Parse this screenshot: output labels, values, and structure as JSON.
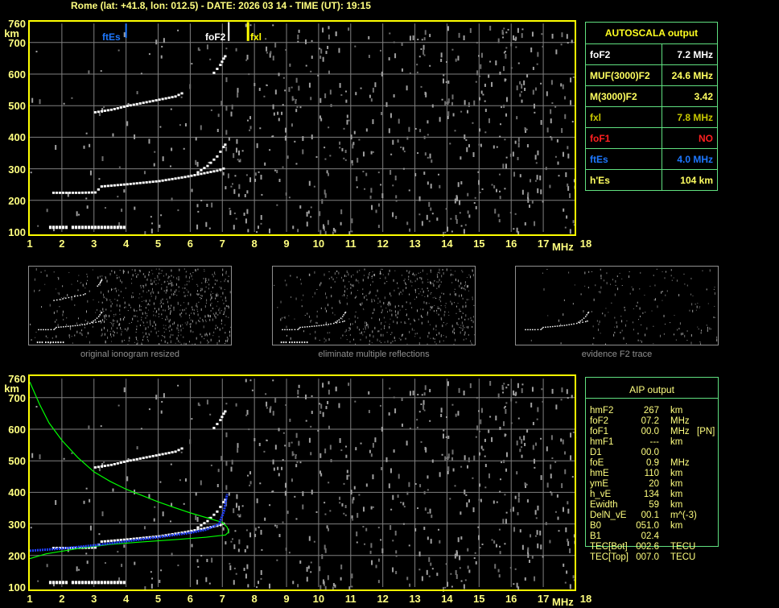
{
  "header": {
    "title": "Rome (lat: +41.8, lon: 012.5) - DATE: 2026 03 14 - TIME (UT): 19:15"
  },
  "colors": {
    "frame": "#ffff00",
    "grid": "#808080",
    "table_border": "#60e080",
    "ftEs": "#1e78ff",
    "foF2": "#ffffff",
    "fxl": "#ffff00",
    "profile": "#00ff00",
    "fit": "#2040ff"
  },
  "axes": {
    "y_unit": "km",
    "x_unit": "MHz",
    "y_ticks": [
      "760",
      "700",
      "600",
      "500",
      "400",
      "300",
      "200",
      "100"
    ],
    "x_ticks": [
      "1",
      "2",
      "3",
      "4",
      "5",
      "6",
      "7",
      "8",
      "9",
      "10",
      "11",
      "12",
      "13",
      "14",
      "15",
      "16",
      "17",
      "18"
    ]
  },
  "markers": {
    "ftEs": {
      "label": "ftEs",
      "freq": 4.0
    },
    "foF2": {
      "label": "foF2",
      "freq": 7.2
    },
    "fxl": {
      "label": "fxl",
      "freq": 7.8
    }
  },
  "autoscala": {
    "title": "AUTOSCALA output",
    "rows": [
      {
        "label": "foF2",
        "value": "7.2 MHz",
        "color": "#ffffff"
      },
      {
        "label": "MUF(3000)F2",
        "value": "24.6 MHz",
        "color": "#ffff60"
      },
      {
        "label": "M(3000)F2",
        "value": "3.42",
        "color": "#ffff60"
      },
      {
        "label": "fxl",
        "value": "7.8 MHz",
        "color": "#c8c800"
      },
      {
        "label": "foF1",
        "value": "NO",
        "color": "#ff2020"
      },
      {
        "label": "ftEs",
        "value": "4.0 MHz",
        "color": "#1e78ff"
      },
      {
        "label": "h'Es",
        "value": "104     km",
        "color": "#ffff60"
      }
    ]
  },
  "thumbnails": [
    {
      "caption": "original ionogram resized"
    },
    {
      "caption": "eliminate multiple reflections"
    },
    {
      "caption": "evidence F2 trace"
    }
  ],
  "aip": {
    "title": "AIP output",
    "rows": [
      {
        "label": "hmF2",
        "value": "267",
        "unit": "km",
        "extra": ""
      },
      {
        "label": "foF2",
        "value": "07.2",
        "unit": "MHz",
        "extra": ""
      },
      {
        "label": "foF1",
        "value": "00.0",
        "unit": "MHz",
        "extra": "[PN]"
      },
      {
        "label": "hmF1",
        "value": "---",
        "unit": "km",
        "extra": ""
      },
      {
        "label": "D1",
        "value": "00.0",
        "unit": "",
        "extra": ""
      },
      {
        "label": "foE",
        "value": "0.9",
        "unit": "MHz",
        "extra": ""
      },
      {
        "label": "hmE",
        "value": "110",
        "unit": "km",
        "extra": ""
      },
      {
        "label": "ymE",
        "value": "20",
        "unit": "km",
        "extra": ""
      },
      {
        "label": "h_vE",
        "value": "134",
        "unit": "km",
        "extra": ""
      },
      {
        "label": "Ewidth",
        "value": "59",
        "unit": "km",
        "extra": ""
      },
      {
        "label": "DelN_vE",
        "value": "00.1",
        "unit": "m^(-3)",
        "extra": ""
      },
      {
        "label": "B0",
        "value": "051.0",
        "unit": "km",
        "extra": ""
      },
      {
        "label": "B1",
        "value": "02.4",
        "unit": "",
        "extra": ""
      },
      {
        "label": "TEC[Bot]",
        "value": "002.6",
        "unit": "TECU",
        "extra": ""
      },
      {
        "label": "TEC[Top]",
        "value": "007.0",
        "unit": "TECU",
        "extra": ""
      }
    ]
  },
  "chart_data": {
    "type": "scatter",
    "xlabel": "MHz",
    "ylabel": "km",
    "xlim": [
      1,
      18
    ],
    "ylim": [
      100,
      760
    ],
    "grid": true,
    "traces": {
      "Es": [
        [
          1.6,
          117
        ],
        [
          2.2,
          117
        ],
        [
          2.3,
          117
        ],
        [
          4.0,
          117
        ]
      ],
      "F_low": [
        [
          1.7,
          225
        ],
        [
          2.5,
          225
        ],
        [
          3.0,
          226
        ],
        [
          3.2,
          245
        ],
        [
          4.0,
          252
        ],
        [
          5.0,
          262
        ],
        [
          5.8,
          275
        ],
        [
          6.3,
          285
        ],
        [
          6.8,
          295
        ],
        [
          7.1,
          305
        ]
      ],
      "F_cusp": [
        [
          6.2,
          290
        ],
        [
          6.5,
          310
        ],
        [
          6.8,
          340
        ],
        [
          7.0,
          370
        ],
        [
          7.1,
          385
        ]
      ],
      "F_second_hop": [
        [
          3.0,
          480
        ],
        [
          3.5,
          488
        ],
        [
          4.0,
          500
        ],
        [
          4.5,
          510
        ],
        [
          5.0,
          520
        ],
        [
          5.5,
          530
        ],
        [
          5.8,
          545
        ]
      ],
      "F_upper": [
        [
          6.7,
          605
        ],
        [
          6.9,
          630
        ],
        [
          7.0,
          650
        ],
        [
          7.1,
          665
        ]
      ]
    },
    "profile_curve": [
      [
        1.0,
        750
      ],
      [
        1.3,
        680
      ],
      [
        1.6,
        620
      ],
      [
        2.0,
        565
      ],
      [
        2.5,
        510
      ],
      [
        3.0,
        465
      ],
      [
        3.5,
        435
      ],
      [
        4.0,
        410
      ],
      [
        4.5,
        390
      ],
      [
        5.0,
        370
      ],
      [
        5.5,
        352
      ],
      [
        6.0,
        335
      ],
      [
        6.5,
        320
      ],
      [
        7.0,
        305
      ],
      [
        7.15,
        290
      ],
      [
        7.2,
        275
      ],
      [
        7.1,
        265
      ],
      [
        6.5,
        258
      ],
      [
        5.5,
        250
      ],
      [
        4.5,
        243
      ],
      [
        3.5,
        235
      ],
      [
        2.5,
        222
      ],
      [
        1.5,
        205
      ],
      [
        1.0,
        190
      ]
    ],
    "fitted_trace": [
      [
        1.0,
        215
      ],
      [
        2.0,
        222
      ],
      [
        3.0,
        232
      ],
      [
        4.0,
        245
      ],
      [
        5.0,
        258
      ],
      [
        6.0,
        272
      ],
      [
        6.5,
        282
      ],
      [
        6.9,
        300
      ],
      [
        7.05,
        340
      ],
      [
        7.15,
        395
      ]
    ]
  }
}
